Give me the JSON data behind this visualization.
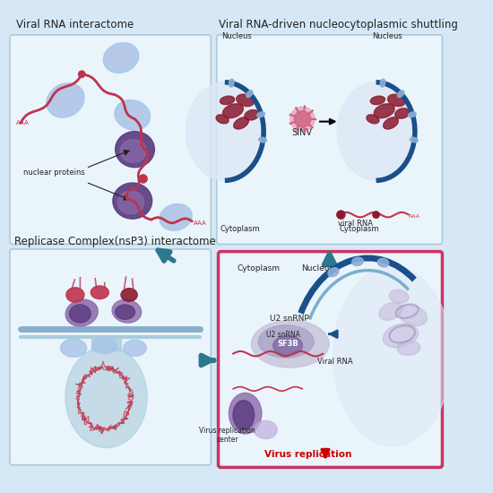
{
  "bg_color": "#d6e8f5",
  "panel_bg": "#eaf4fb",
  "panel_border": "#b0c8d8",
  "title_color": "#222222",
  "blue_dark": "#1a4f8a",
  "blue_mid": "#5b8dd9",
  "blue_light": "#a8c4e8",
  "purple_dark": "#5a3a7e",
  "purple_mid": "#8b6aaa",
  "purple_light": "#c0aedd",
  "red_dark": "#8b1a2e",
  "red_mid": "#c0334d",
  "red_light": "#e8a0b0",
  "teal": "#2a7a8c",
  "pink_border": "#cc3366",
  "text_label": "#333333",
  "virus_replication_color": "#cc0000",
  "panel1_title": "Viral RNA interactome",
  "panel2_title": "Viral RNA-driven nucleocytoplasmic shuttling",
  "panel3_title": "Replicase Complex(nsP3) interactome",
  "nucleus_label": "Nucleus",
  "cytoplasm_label": "Cytoplasm",
  "sinv_label": "SINV",
  "viral_rna_label": "viral RNA",
  "nuclear_proteins_label": "nuclear proteins",
  "u2_snrnp_label": "U2 snRNP",
  "u2_snrna_label": "U2 snRNA",
  "sf3b_label": "SF3B",
  "virus_rep_center_label": "Virus replication\ncenter",
  "viral_rna_label2": "Viral RNA",
  "virus_replication_label": "Virus replication"
}
